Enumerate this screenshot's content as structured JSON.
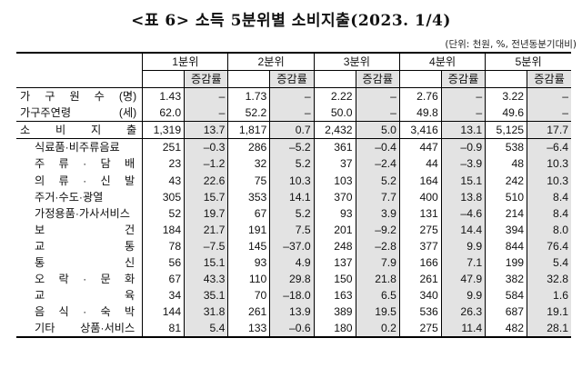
{
  "title": "<표 6> 소득 5분위별 소비지출(2023. 1/4)",
  "unit_note": "(단위: 천원, %, 전년동분기대비)",
  "quintiles": [
    "1분위",
    "2분위",
    "3분위",
    "4분위",
    "5분위"
  ],
  "rate_label": "증감률",
  "top_rows": [
    {
      "label": "가 구 원 수 (명)",
      "cells": [
        "1.43",
        "–",
        "1.73",
        "–",
        "2.22",
        "–",
        "2.76",
        "–",
        "3.22",
        "–"
      ]
    },
    {
      "label": "가구주연령 (세)",
      "cells": [
        "62.0",
        "–",
        "52.2",
        "–",
        "50.0",
        "–",
        "49.8",
        "–",
        "49.6",
        "–"
      ]
    }
  ],
  "total_row": {
    "label": "소 비 지 출",
    "cells": [
      "1,319",
      "13.7",
      "1,817",
      "0.7",
      "2,432",
      "5.0",
      "3,416",
      "13.1",
      "5,125",
      "17.7"
    ]
  },
  "rows": [
    {
      "label": "식료품·비주류음료",
      "cells": [
        "251",
        "–0.3",
        "286",
        "–5.2",
        "361",
        "–0.4",
        "447",
        "–0.9",
        "538",
        "–6.4"
      ]
    },
    {
      "label": "주 류 · 담 배",
      "cells": [
        "23",
        "–1.2",
        "32",
        "5.2",
        "37",
        "–2.4",
        "44",
        "–3.9",
        "48",
        "10.3"
      ]
    },
    {
      "label": "의 류 · 신 발",
      "cells": [
        "43",
        "22.6",
        "75",
        "10.3",
        "103",
        "5.2",
        "164",
        "15.1",
        "242",
        "10.3"
      ]
    },
    {
      "label": "주거·수도·광열",
      "cells": [
        "305",
        "15.7",
        "353",
        "14.1",
        "370",
        "7.7",
        "400",
        "13.8",
        "510",
        "8.4"
      ]
    },
    {
      "label": "가정용품·가사서비스",
      "cells": [
        "52",
        "19.7",
        "67",
        "5.2",
        "93",
        "3.9",
        "131",
        "–4.6",
        "214",
        "8.4"
      ]
    },
    {
      "label": "보 건",
      "cells": [
        "184",
        "21.7",
        "191",
        "7.5",
        "201",
        "–9.2",
        "275",
        "14.4",
        "394",
        "8.0"
      ]
    },
    {
      "label": "교 통",
      "cells": [
        "78",
        "–7.5",
        "145",
        "–37.0",
        "248",
        "–2.8",
        "377",
        "9.9",
        "844",
        "76.4"
      ]
    },
    {
      "label": "통 신",
      "cells": [
        "56",
        "15.1",
        "93",
        "4.9",
        "137",
        "7.9",
        "166",
        "7.1",
        "199",
        "5.4"
      ]
    },
    {
      "label": "오 락 · 문 화",
      "cells": [
        "67",
        "43.3",
        "110",
        "29.8",
        "150",
        "21.8",
        "261",
        "47.9",
        "382",
        "32.8"
      ]
    },
    {
      "label": "교 육",
      "cells": [
        "34",
        "35.1",
        "70",
        "–18.0",
        "163",
        "6.5",
        "340",
        "9.9",
        "584",
        "1.6"
      ]
    },
    {
      "label": "음 식 · 숙 박",
      "cells": [
        "144",
        "31.8",
        "261",
        "13.9",
        "389",
        "19.5",
        "536",
        "26.3",
        "687",
        "19.1"
      ]
    },
    {
      "label": "기타 상품·서비스",
      "cells": [
        "81",
        "5.4",
        "133",
        "–0.6",
        "180",
        "0.2",
        "275",
        "11.4",
        "482",
        "28.1"
      ]
    }
  ]
}
